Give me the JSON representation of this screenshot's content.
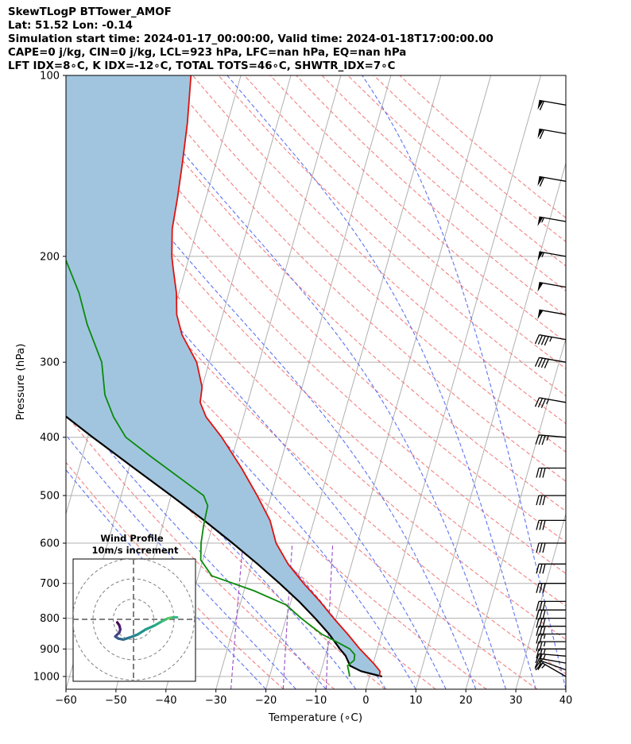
{
  "header": {
    "line1": "SkewTLogP BTTower_AMOF",
    "line2": "Lat: 51.52   Lon: -0.14",
    "line3": "Simulation start time: 2024-01-17_00:00:00, Valid time: 2024-01-18T17:00:00.00",
    "line4": "CAPE=0 j/kg, CIN=0 j/kg, LCL=923 hPa, LFC=nan hPa, EQ=nan hPa",
    "line5": "LFT IDX=8∘C, K IDX=-12∘C, TOTAL TOTS=46∘C, SHWTR_IDX=7∘C"
  },
  "chart_data": {
    "type": "line",
    "subtype": "skew-t log-p",
    "xlabel": "Temperature (∘C)",
    "ylabel": "Pressure (hPa)",
    "xlim": [
      -60,
      40
    ],
    "ylim": [
      1050,
      100
    ],
    "x_ticks": [
      "−60",
      "−50",
      "−40",
      "−30",
      "−20",
      "−10",
      "0",
      "10",
      "20",
      "30",
      "40"
    ],
    "x_tick_values": [
      -60,
      -50,
      -40,
      -30,
      -20,
      -10,
      0,
      10,
      20,
      30,
      40
    ],
    "y_ticks": [
      "1000",
      "900",
      "800",
      "700",
      "600",
      "500",
      "400",
      "300",
      "200",
      "100"
    ],
    "y_tick_values": [
      1000,
      900,
      800,
      700,
      600,
      500,
      400,
      300,
      200,
      100
    ],
    "skew_factor": 35,
    "colors": {
      "temperature": "#e0120e",
      "dewpoint": "#0a8a0a",
      "parcel": "#000000",
      "shade": "#a1c5df",
      "isotherm": "#b0b0b0",
      "dry_adiabat": "#f06a6a",
      "moist_adiabat": "#4d64f0",
      "mixing_ratio": "#9b48c8",
      "grid": "#b0b0b0",
      "barb": "#000000"
    },
    "series": [
      {
        "name": "Temperature",
        "p": [
          1000,
          980,
          950,
          900,
          850,
          800,
          750,
          700,
          650,
          600,
          550,
          500,
          450,
          400,
          370,
          350,
          330,
          300,
          270,
          250,
          230,
          210,
          200,
          180,
          160,
          140,
          120,
          100
        ],
        "t": [
          2,
          1.8,
          0,
          -3.5,
          -6.8,
          -10.5,
          -14.2,
          -18.5,
          -22.7,
          -26.3,
          -28.8,
          -32.8,
          -37.5,
          -43.2,
          -47.5,
          -49.5,
          -50,
          -52.5,
          -57,
          -59.2,
          -60.5,
          -62.5,
          -63.5,
          -65,
          -65.7,
          -66.7,
          -68,
          -70
        ]
      },
      {
        "name": "Dewpoint",
        "p": [
          1000,
          990,
          960,
          940,
          920,
          900,
          880,
          850,
          800,
          760,
          720,
          680,
          640,
          600,
          560,
          520,
          500,
          480,
          430,
          400,
          370,
          340,
          300,
          260,
          230,
          200,
          190,
          180,
          170,
          150,
          130,
          115,
          100
        ],
        "t": [
          -4,
          -4.2,
          -5,
          -4,
          -4.2,
          -5.5,
          -8,
          -12,
          -17,
          -20.8,
          -28,
          -37.3,
          -40.4,
          -41.3,
          -41.8,
          -42.1,
          -43.5,
          -47,
          -56.4,
          -62.4,
          -66,
          -69,
          -71.5,
          -76.5,
          -80,
          -85,
          -85.5,
          -87,
          -91,
          -97,
          -102,
          -107,
          -115
        ]
      },
      {
        "name": "Parcel",
        "p": [
          1000,
          980,
          960,
          940,
          923,
          900,
          850,
          800,
          750,
          700,
          650,
          600,
          550,
          500,
          450,
          400,
          350,
          300,
          250,
          200,
          170,
          150,
          130,
          115,
          100
        ],
        "t": [
          2.5,
          -2,
          -4.5,
          -5.3,
          -6,
          -7.5,
          -10.5,
          -14.2,
          -18.4,
          -23.3,
          -28.8,
          -35,
          -42,
          -50,
          -59,
          -69,
          -80,
          -93,
          -108,
          -126,
          -140,
          -150,
          -162,
          -172,
          -183
        ]
      }
    ],
    "wind_barbs": {
      "p": [
        1000,
        975,
        950,
        925,
        900,
        875,
        850,
        825,
        800,
        775,
        750,
        700,
        650,
        600,
        550,
        500,
        450,
        400,
        350,
        300,
        275,
        250,
        225,
        200,
        175,
        150,
        125,
        112
      ],
      "speed_kt": [
        17,
        20,
        22,
        24,
        25,
        26,
        27,
        28,
        28,
        29,
        30,
        30,
        30,
        30,
        30,
        30,
        30,
        33,
        37,
        42,
        46,
        50,
        52,
        55,
        57,
        60,
        62,
        62
      ],
      "direction_deg": [
        300,
        290,
        280,
        275,
        270,
        270,
        270,
        270,
        270,
        270,
        270,
        270,
        270,
        270,
        270,
        270,
        270,
        275,
        280,
        280,
        280,
        280,
        280,
        280,
        280,
        280,
        280,
        280
      ]
    },
    "hodograph": {
      "title_line1": "Wind Profile",
      "title_line2": "10m/s increment",
      "rings_ms": [
        10,
        20,
        30
      ],
      "u": [
        -8.0,
        -7.0,
        -6.5,
        -7.0,
        -9.0,
        -7.5,
        -5.0,
        -2.0,
        2.0,
        6.0,
        10.5,
        14.0,
        17.0,
        19.5,
        21.5
      ],
      "v": [
        -1.5,
        -3.0,
        -5.0,
        -6.5,
        -8.5,
        -9.5,
        -10.0,
        -9.0,
        -7.5,
        -5.0,
        -3.0,
        -1.0,
        0.5,
        1.0,
        1.0
      ],
      "colors": [
        "#440154",
        "#48186a",
        "#472d7b",
        "#424086",
        "#3b528b",
        "#33638d",
        "#2c728e",
        "#26828e",
        "#21918c",
        "#1fa088",
        "#28ae80",
        "#3fbc73",
        "#5ec962",
        "#3ab98b",
        "#2bb39a"
      ]
    }
  }
}
